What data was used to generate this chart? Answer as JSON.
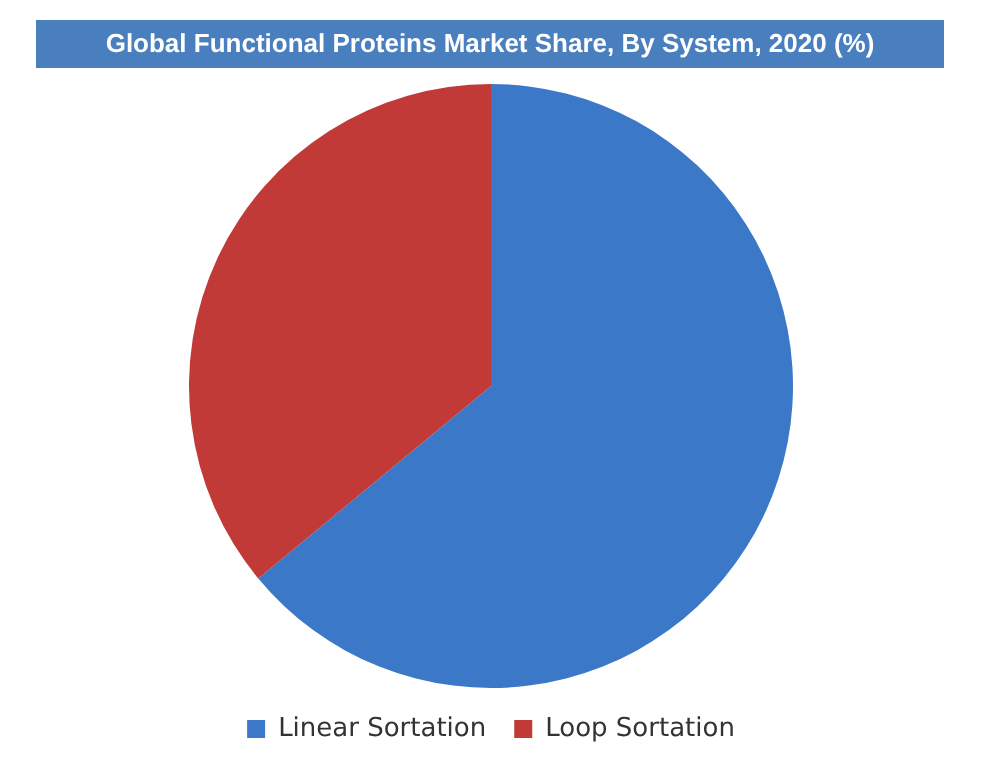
{
  "chart_data": {
    "type": "pie",
    "title": "Global Functional Proteins Market Share, By System, 2020 (%)",
    "categories": [
      "Linear Sortation",
      "Loop Sortation"
    ],
    "values": [
      64,
      36
    ],
    "colors": [
      "#3b78c8",
      "#c13a37"
    ],
    "legend": "bottom"
  }
}
